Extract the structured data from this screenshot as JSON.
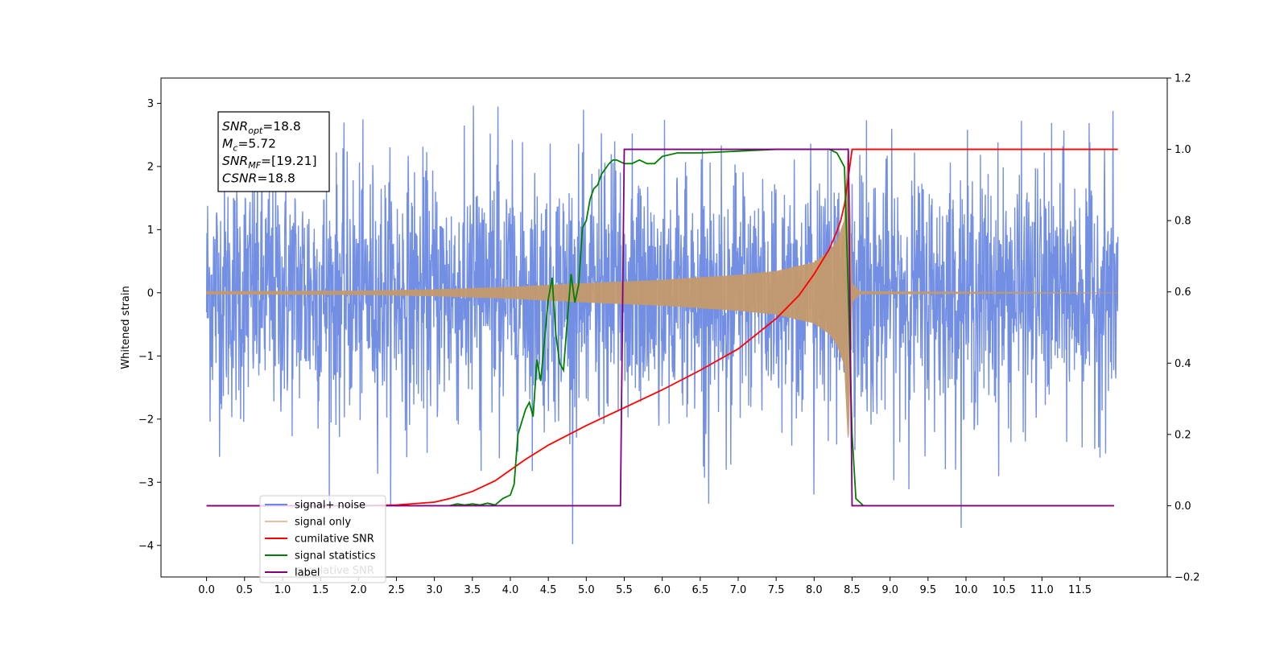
{
  "chart_data": {
    "type": "line",
    "title": "",
    "xlabel": "",
    "ylabel": "Whitened strain",
    "y2label": "",
    "xlim": [
      -0.6,
      12.65
    ],
    "ylim": [
      -4.5,
      3.4
    ],
    "y2lim": [
      -0.2,
      1.2
    ],
    "x_ticks": [
      "0.0",
      "0.5",
      "1.0",
      "1.5",
      "2.0",
      "2.5",
      "3.0",
      "3.5",
      "4.0",
      "4.5",
      "5.0",
      "5.5",
      "6.0",
      "6.5",
      "7.0",
      "7.5",
      "8.0",
      "8.5",
      "9.0",
      "9.5",
      "10.0",
      "10.5",
      "11.0",
      "11.5"
    ],
    "y_ticks": [
      "3",
      "2",
      "1",
      "0",
      "−1",
      "−2",
      "−3",
      "−4"
    ],
    "y2_ticks": [
      "1.2",
      "1.0",
      "0.8",
      "0.6",
      "0.4",
      "0.2",
      "0.0",
      "−0.2"
    ],
    "grid": false,
    "legend_position": "lower-left",
    "info_box": {
      "lines": [
        {
          "sym": "SNR",
          "sub": "opt",
          "rest": "=18.8"
        },
        {
          "sym": "M",
          "sub": "c",
          "rest": "=5.72"
        },
        {
          "sym": "SNR",
          "sub": "MF",
          "rest": "=[19.21]"
        },
        {
          "sym": "CSNR",
          "sub": "",
          "rest": "=18.8"
        }
      ]
    },
    "series": [
      {
        "name": "signal+ noise",
        "color": "#6b89e3",
        "axis": "left",
        "kind": "noise",
        "x_range": [
          0.0,
          12.0
        ],
        "typical_amplitude": 1.8,
        "max": 3.02,
        "min": -4.12
      },
      {
        "name": "signal only",
        "color": "#c49a6c",
        "axis": "left",
        "kind": "chirp",
        "x_range": [
          0.0,
          12.0
        ],
        "merger_time": 8.45,
        "envelope": [
          [
            0,
            0.02
          ],
          [
            2,
            0.03
          ],
          [
            3.0,
            0.05
          ],
          [
            4.0,
            0.09
          ],
          [
            5.0,
            0.15
          ],
          [
            6.0,
            0.2
          ],
          [
            7.0,
            0.28
          ],
          [
            7.5,
            0.34
          ],
          [
            8.0,
            0.48
          ],
          [
            8.2,
            0.65
          ],
          [
            8.3,
            0.82
          ],
          [
            8.4,
            1.15
          ],
          [
            8.45,
            2.4
          ],
          [
            8.5,
            0.15
          ],
          [
            8.6,
            0.02
          ],
          [
            12.0,
            0.0
          ]
        ]
      },
      {
        "name": "cumilative SNR",
        "color": "#ff0000",
        "axis": "right",
        "x": [
          0.0,
          2.0,
          2.5,
          3.0,
          3.2,
          3.5,
          3.8,
          4.0,
          4.2,
          4.5,
          5.0,
          5.5,
          6.0,
          6.5,
          7.0,
          7.5,
          7.8,
          8.0,
          8.1,
          8.2,
          8.3,
          8.35,
          8.4,
          8.45,
          8.5,
          9.0,
          10.0,
          11.0,
          11.5,
          12.0
        ],
        "values": [
          0.0,
          0.0,
          0.002,
          0.01,
          0.02,
          0.04,
          0.07,
          0.1,
          0.13,
          0.17,
          0.225,
          0.275,
          0.325,
          0.38,
          0.44,
          0.525,
          0.59,
          0.65,
          0.685,
          0.72,
          0.77,
          0.8,
          0.845,
          0.92,
          1.0,
          1.0,
          1.0,
          1.0,
          1.0,
          1.0
        ]
      },
      {
        "name": "signal statistics",
        "color": "#008000",
        "axis": "right",
        "x": [
          3.2,
          3.3,
          3.4,
          3.5,
          3.6,
          3.7,
          3.8,
          3.9,
          4.0,
          4.05,
          4.1,
          4.2,
          4.25,
          4.3,
          4.35,
          4.4,
          4.5,
          4.55,
          4.6,
          4.65,
          4.7,
          4.75,
          4.8,
          4.85,
          4.9,
          4.95,
          5.0,
          5.05,
          5.1,
          5.15,
          5.2,
          5.3,
          5.35,
          5.4,
          5.5,
          5.55,
          5.6,
          5.7,
          5.8,
          5.9,
          6.0,
          6.2,
          6.5,
          7.0,
          7.5,
          8.0,
          8.2,
          8.3,
          8.35,
          8.4,
          8.45,
          8.5,
          8.55,
          8.6,
          8.65
        ],
        "values": [
          0.0,
          0.005,
          0.002,
          0.005,
          0.002,
          0.007,
          0.002,
          0.02,
          0.03,
          0.06,
          0.2,
          0.27,
          0.29,
          0.25,
          0.41,
          0.35,
          0.58,
          0.64,
          0.48,
          0.4,
          0.38,
          0.52,
          0.65,
          0.57,
          0.62,
          0.78,
          0.8,
          0.86,
          0.89,
          0.9,
          0.93,
          0.96,
          0.97,
          0.97,
          0.96,
          0.96,
          0.96,
          0.97,
          0.96,
          0.96,
          0.98,
          0.99,
          0.99,
          0.995,
          1.0,
          1.0,
          1.0,
          0.99,
          0.97,
          0.95,
          0.6,
          0.2,
          0.02,
          0.01,
          0.0
        ]
      },
      {
        "name": "label",
        "color": "#800080",
        "axis": "right",
        "x": [
          0.0,
          5.45,
          5.5,
          8.45,
          8.5,
          11.95
        ],
        "values": [
          0.0,
          0.0,
          1.0,
          1.0,
          0.0,
          0.0
        ]
      }
    ],
    "legend_labels": [
      "signal+ noise",
      "signal only",
      "cumilative SNR",
      "signal statistics",
      "label"
    ],
    "legend_ghost_text": "cumilative SNR"
  }
}
